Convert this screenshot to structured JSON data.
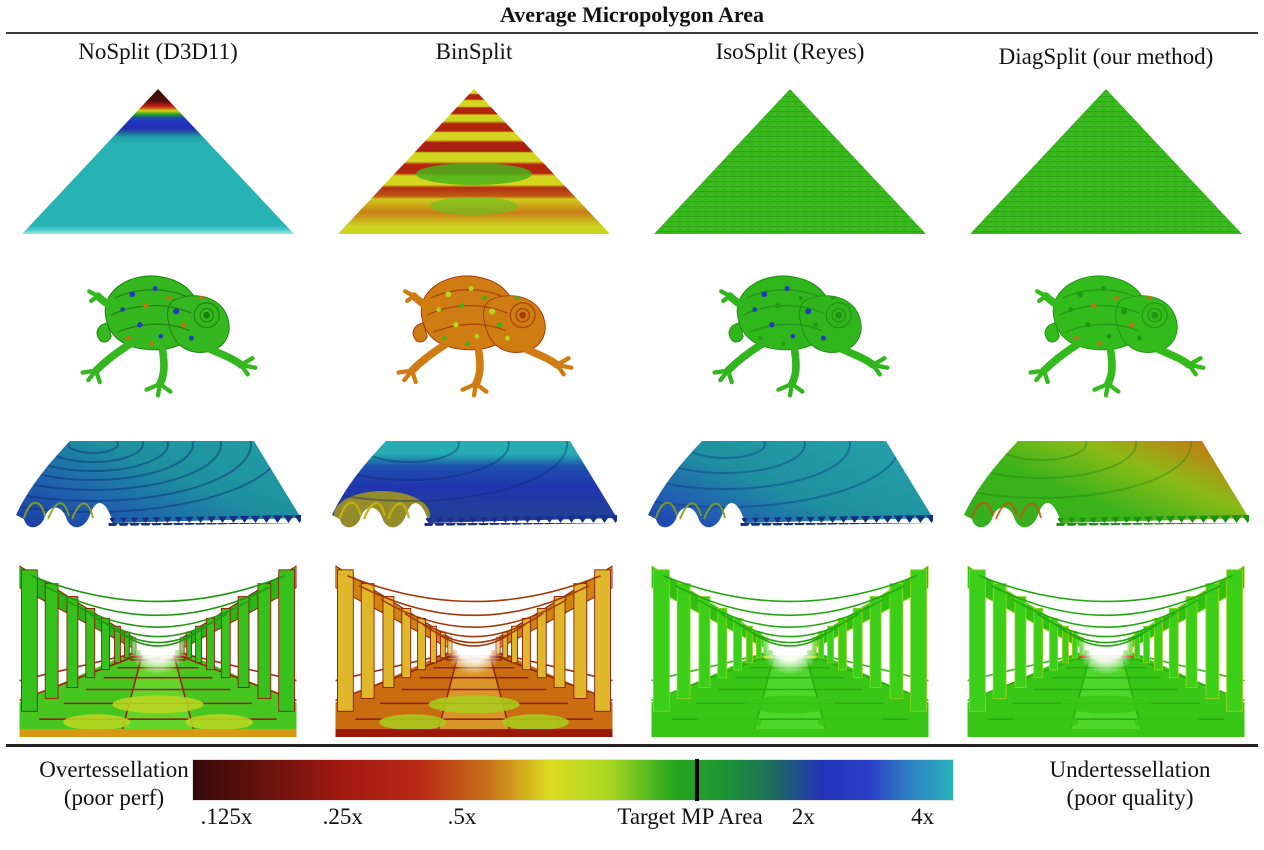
{
  "figure": {
    "title": "Average Micropolygon Area",
    "columns": [
      {
        "label": "NoSplit (D3D11)"
      },
      {
        "label": "BinSplit"
      },
      {
        "label": "IsoSplit (Reyes)"
      },
      {
        "label": "DiagSplit (our method)"
      }
    ],
    "rows": [
      {
        "scene": "flat-triangle-render"
      },
      {
        "scene": "frog-model-render"
      },
      {
        "scene": "wavy-terrain-render"
      },
      {
        "scene": "colonnade-render"
      }
    ]
  },
  "legend": {
    "left_label": [
      "Overtessellation",
      "(poor perf)"
    ],
    "right_label": [
      "Undertessellation",
      "(poor quality)"
    ],
    "ticks": [
      {
        "label": ".125x",
        "pct": 4.4
      },
      {
        "label": ".25x",
        "pct": 19.7
      },
      {
        "label": ".5x",
        "pct": 35.4
      },
      {
        "label": "Target MP Area",
        "pct": 65.4
      },
      {
        "label": "2x",
        "pct": 80.3
      },
      {
        "label": "4x",
        "pct": 96.0
      }
    ],
    "target_marker_pct": 66.3,
    "colormap_stops": [
      {
        "pct": 0,
        "color": "#340a08"
      },
      {
        "pct": 8,
        "color": "#5f100c"
      },
      {
        "pct": 20,
        "color": "#a41a11"
      },
      {
        "pct": 30,
        "color": "#b92a16"
      },
      {
        "pct": 39,
        "color": "#c8731a"
      },
      {
        "pct": 47,
        "color": "#dcdc20"
      },
      {
        "pct": 55,
        "color": "#a6d622"
      },
      {
        "pct": 63,
        "color": "#27a81e"
      },
      {
        "pct": 70,
        "color": "#1d9334"
      },
      {
        "pct": 76,
        "color": "#1e6e5a"
      },
      {
        "pct": 83,
        "color": "#2432ba"
      },
      {
        "pct": 89,
        "color": "#2b3ec6"
      },
      {
        "pct": 94,
        "color": "#2e7ec4"
      },
      {
        "pct": 100,
        "color": "#29b2bc"
      }
    ]
  }
}
